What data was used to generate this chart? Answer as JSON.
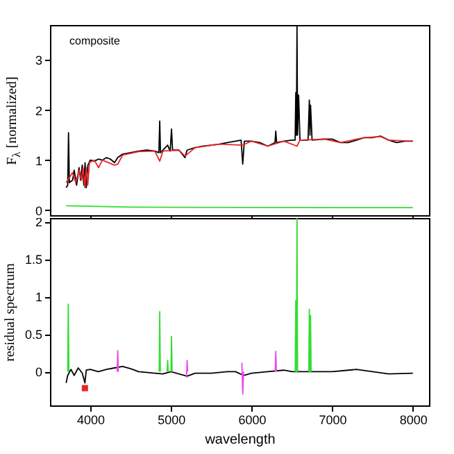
{
  "chart_data": [
    {
      "type": "line",
      "ylabel": "F$_{λ}$ [normalized]",
      "annotations": [
        "composite"
      ],
      "xlim": [
        3500,
        8200
      ],
      "xticks": [
        4000,
        5000,
        6000,
        7000,
        8000
      ],
      "ylim": [
        -0.1,
        3.7
      ],
      "yticks": [
        0,
        1,
        2,
        3
      ],
      "tick_labels": "y",
      "grid": false,
      "series": [
        {
          "color": "#000000",
          "x": [
            3700,
            3720,
            3730,
            3740,
            3780,
            3800,
            3830,
            3860,
            3880,
            3900,
            3920,
            3935,
            3950,
            3970,
            4000,
            4050,
            4100,
            4150,
            4200,
            4250,
            4300,
            4340,
            4400,
            4500,
            4600,
            4700,
            4800,
            4850,
            4861,
            4870,
            4900,
            4959,
            4990,
            5007,
            5020,
            5100,
            5175,
            5200,
            5300,
            5400,
            5500,
            5600,
            5700,
            5800,
            5870,
            5890,
            5910,
            6000,
            6100,
            6200,
            6290,
            6300,
            6310,
            6400,
            6500,
            6540,
            6548,
            6556,
            6563,
            6570,
            6583,
            6600,
            6700,
            6716,
            6724,
            6731,
            6750,
            6900,
            7000,
            7100,
            7200,
            7300,
            7400,
            7500,
            7600,
            7700,
            7800,
            7900,
            8000
          ],
          "values": [
            0.45,
            0.5,
            1.55,
            0.55,
            0.6,
            0.8,
            0.5,
            0.85,
            0.6,
            0.9,
            0.5,
            0.95,
            0.45,
            0.9,
            1.0,
            0.98,
            1.02,
            1.0,
            1.05,
            1.02,
            0.95,
            1.05,
            1.12,
            1.15,
            1.18,
            1.2,
            1.18,
            1.15,
            1.78,
            1.15,
            1.2,
            1.3,
            1.18,
            1.62,
            1.2,
            1.2,
            1.05,
            1.2,
            1.25,
            1.28,
            1.3,
            1.32,
            1.35,
            1.38,
            1.4,
            0.92,
            1.38,
            1.38,
            1.35,
            1.28,
            1.35,
            1.58,
            1.35,
            1.38,
            1.4,
            1.4,
            2.35,
            1.5,
            3.7,
            1.5,
            2.3,
            1.4,
            1.4,
            2.2,
            1.5,
            2.1,
            1.4,
            1.42,
            1.42,
            1.35,
            1.35,
            1.4,
            1.45,
            1.45,
            1.48,
            1.4,
            1.35,
            1.38,
            1.38
          ]
        },
        {
          "color": "#e8262a",
          "x": [
            3700,
            3780,
            3820,
            3860,
            3890,
            3910,
            3933,
            3950,
            3968,
            3990,
            4050,
            4102,
            4150,
            4300,
            4340,
            4400,
            4600,
            4800,
            4861,
            4900,
            5100,
            5175,
            5300,
            5600,
            5890,
            6000,
            6200,
            6400,
            6563,
            6600,
            6900,
            7100,
            7400,
            7600,
            7700,
            8000
          ],
          "values": [
            0.55,
            0.75,
            0.55,
            0.8,
            0.6,
            0.85,
            0.45,
            0.85,
            0.5,
            0.95,
            1.0,
            0.85,
            1.0,
            0.9,
            0.92,
            1.1,
            1.17,
            1.18,
            0.98,
            1.18,
            1.2,
            1.08,
            1.25,
            1.32,
            1.3,
            1.38,
            1.28,
            1.38,
            1.28,
            1.4,
            1.42,
            1.35,
            1.45,
            1.47,
            1.4,
            1.38
          ]
        },
        {
          "color": "#33dd33",
          "x": [
            3700,
            4500,
            8000
          ],
          "values": [
            0.09,
            0.06,
            0.05
          ]
        }
      ]
    },
    {
      "type": "line",
      "xlabel": "wavelength",
      "ylabel": "residual spectrum",
      "xlim": [
        3500,
        8200
      ],
      "xticks": [
        4000,
        5000,
        6000,
        7000,
        8000
      ],
      "ylim": [
        -0.45,
        2.05
      ],
      "yticks": [
        0,
        0.5,
        1,
        1.5,
        2
      ],
      "grid": false,
      "series": [
        {
          "color": "#000000",
          "x": [
            3700,
            3720,
            3760,
            3800,
            3850,
            3900,
            3933,
            3950,
            4000,
            4100,
            4200,
            4300,
            4400,
            4500,
            4600,
            4800,
            4900,
            5000,
            5200,
            5300,
            5500,
            5700,
            5800,
            5900,
            6000,
            6200,
            6400,
            6500,
            6600,
            6800,
            7000,
            7200,
            7300,
            7500,
            7700,
            8000
          ],
          "values": [
            -0.15,
            -0.05,
            0.03,
            -0.05,
            0.05,
            -0.02,
            -0.15,
            0.02,
            0.03,
            0.0,
            0.03,
            0.05,
            0.07,
            0.04,
            0.0,
            -0.02,
            -0.03,
            0.0,
            -0.06,
            -0.02,
            -0.02,
            0.0,
            0.0,
            -0.05,
            -0.02,
            0.0,
            0.02,
            0.0,
            0.0,
            0.0,
            0.0,
            0.02,
            0.03,
            0.0,
            -0.03,
            -0.02
          ]
        },
        {
          "color": "#33dd33",
          "x": [
            3720,
            3727,
            3734
          ],
          "values": [
            0,
            0.9,
            0
          ]
        },
        {
          "color": "#33dd33",
          "x": [
            4854,
            4861,
            4868
          ],
          "values": [
            0,
            0.8,
            0
          ]
        },
        {
          "color": "#33dd33",
          "x": [
            4952,
            4959,
            4966
          ],
          "values": [
            0,
            0.15,
            0
          ]
        },
        {
          "color": "#33dd33",
          "x": [
            5000,
            5007,
            5014
          ],
          "values": [
            0,
            0.47,
            0
          ]
        },
        {
          "color": "#33dd33",
          "x": [
            6541,
            6548,
            6556,
            6563,
            6570
          ],
          "values": [
            0,
            0.95,
            0,
            2.05,
            0
          ]
        },
        {
          "color": "#33dd33",
          "x": [
            6709,
            6716,
            6724,
            6731,
            6738
          ],
          "values": [
            0,
            0.83,
            0,
            0.75,
            0
          ]
        },
        {
          "color": "#ee44ee",
          "x": [
            4333,
            4340,
            4347
          ],
          "values": [
            0,
            0.28,
            0
          ]
        },
        {
          "color": "#ee44ee",
          "x": [
            5193,
            5200,
            5207
          ],
          "values": [
            -0.08,
            0.15,
            0
          ]
        },
        {
          "color": "#ee44ee",
          "x": [
            5880,
            5890,
            5900
          ],
          "values": [
            0.12,
            -0.3,
            0
          ]
        },
        {
          "color": "#ee44ee",
          "x": [
            6293,
            6300,
            6307
          ],
          "values": [
            0,
            0.27,
            0
          ]
        },
        {
          "type": "scatter",
          "marker": "square",
          "color": "#e8262a",
          "x": [
            3933
          ],
          "values": [
            -0.22
          ]
        }
      ]
    }
  ]
}
